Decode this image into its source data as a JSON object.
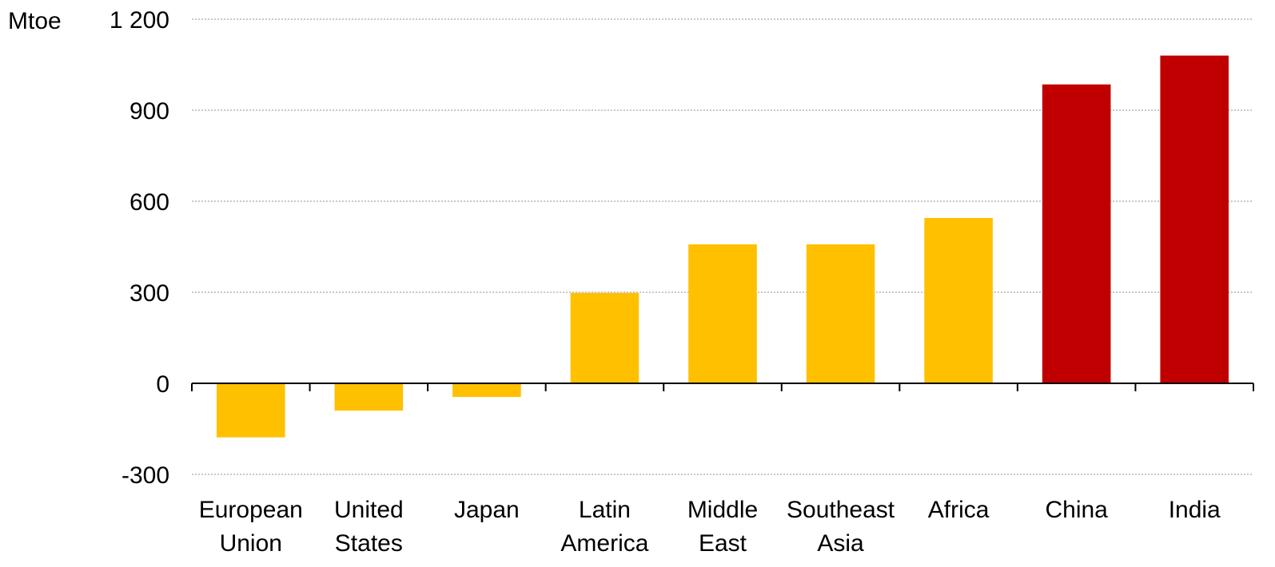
{
  "chart_data": {
    "type": "bar",
    "ylabel": "Mtoe",
    "categories": [
      [
        "European",
        "Union"
      ],
      [
        "United",
        "States"
      ],
      [
        "Japan"
      ],
      [
        "Latin",
        "America"
      ],
      [
        "Middle",
        "East"
      ],
      [
        "Southeast",
        "Asia"
      ],
      [
        "Africa"
      ],
      [
        "China"
      ],
      [
        "India"
      ]
    ],
    "values": [
      -178,
      -90,
      -45,
      298,
      458,
      458,
      545,
      985,
      1080
    ],
    "bar_colors": [
      "#ffc000",
      "#ffc000",
      "#ffc000",
      "#ffc000",
      "#ffc000",
      "#ffc000",
      "#ffc000",
      "#c00000",
      "#c00000"
    ],
    "ylim": [
      -300,
      1200
    ],
    "yticks": [
      -300,
      0,
      300,
      600,
      900,
      1200
    ],
    "ytick_labels": [
      "-300",
      "0",
      "300",
      "600",
      "900",
      "1 200"
    ],
    "grid": true,
    "legend": "none"
  },
  "colors": {
    "highlight": "#c00000",
    "default": "#ffc000",
    "grid": "#a6a6a6"
  }
}
